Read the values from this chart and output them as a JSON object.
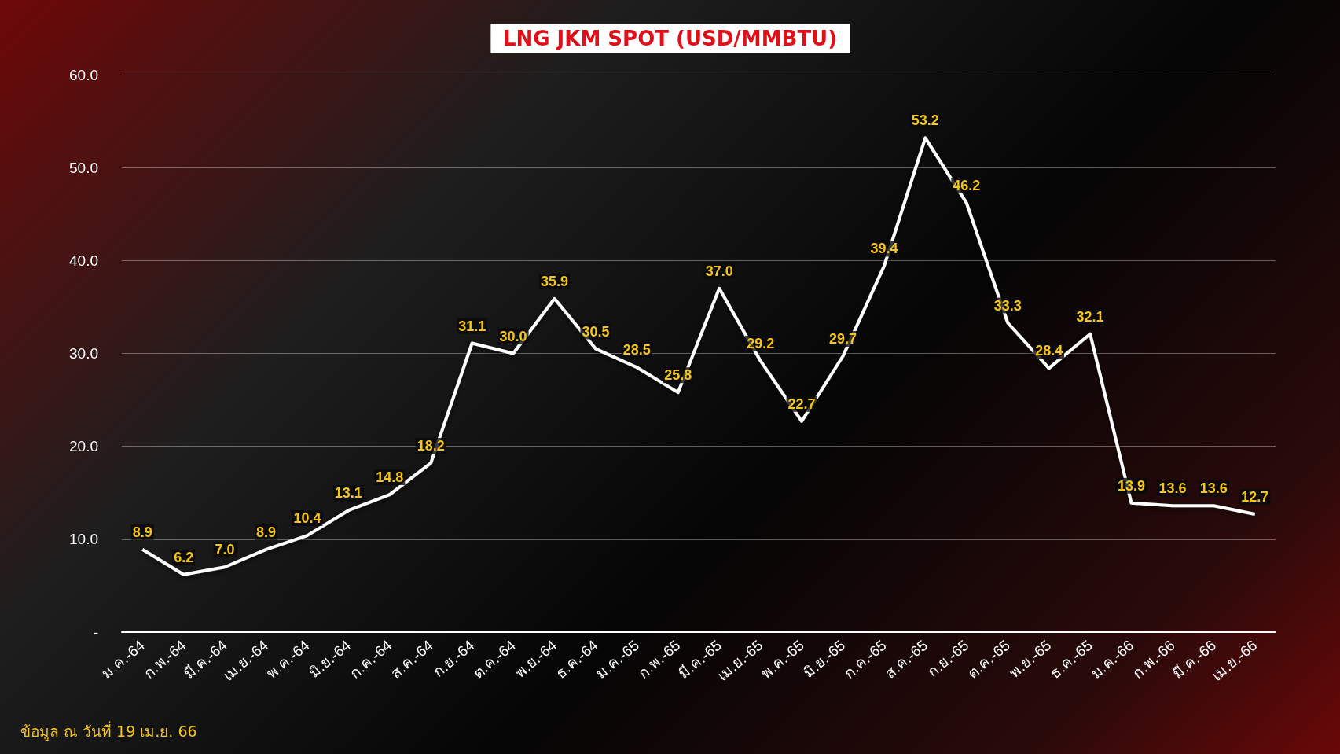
{
  "chart_data": {
    "type": "line",
    "title": "LNG JKM SPOT (USD/MMBTU)",
    "categories": [
      "ม.ค.-64",
      "ก.พ.-64",
      "มี.ค.-64",
      "เม.ย.-64",
      "พ.ค.-64",
      "มิ.ย.-64",
      "ก.ค.-64",
      "ส.ค.-64",
      "ก.ย.-64",
      "ต.ค.-64",
      "พ.ย.-64",
      "ธ.ค.-64",
      "ม.ค.-65",
      "ก.พ.-65",
      "มี.ค.-65",
      "เม.ย.-65",
      "พ.ค.-65",
      "มิ.ย.-65",
      "ก.ค.-65",
      "ส.ค.-65",
      "ก.ย.-65",
      "ต.ค.-65",
      "พ.ย.-65",
      "ธ.ค.-65",
      "ม.ค.-66",
      "ก.พ.-66",
      "มี.ค.-66",
      "เม.ย.-66"
    ],
    "series": [
      {
        "color": "#ffffff",
        "values": [
          8.9,
          6.2,
          7.0,
          8.9,
          10.4,
          13.1,
          14.8,
          18.2,
          31.1,
          30.0,
          35.9,
          30.5,
          28.5,
          25.8,
          37.0,
          29.2,
          22.7,
          29.7,
          39.4,
          53.2,
          46.2,
          33.3,
          28.4,
          32.1,
          13.9,
          13.6,
          13.6,
          12.7
        ],
        "value_labels": [
          "8.9",
          "6.2",
          "7.0",
          "8.9",
          "10.4",
          "13.1",
          "14.8",
          "18.2",
          "31.1",
          "30.0",
          "35.9",
          "30.5",
          "28.5",
          "25.8",
          "37.0",
          "29.2",
          "22.7",
          "29.7",
          "39.4",
          "53.2",
          "46.2",
          "33.3",
          "28.4",
          "32.1",
          "13.9",
          "13.6",
          "13.6",
          "12.7"
        ]
      }
    ],
    "ylim": [
      0,
      60
    ],
    "yticks": [
      {
        "value": 0,
        "label": "-"
      },
      {
        "value": 10,
        "label": "10.0"
      },
      {
        "value": 20,
        "label": "20.0"
      },
      {
        "value": 30,
        "label": "30.0"
      },
      {
        "value": 40,
        "label": "40.0"
      },
      {
        "value": 50,
        "label": "50.0"
      },
      {
        "value": 60,
        "label": "60.0"
      }
    ],
    "grid": "y",
    "marker": "none",
    "line_style": "solid",
    "annotations": [
      "ข้อมูล ณ วันที่ 19 เม.ย. 66"
    ]
  }
}
